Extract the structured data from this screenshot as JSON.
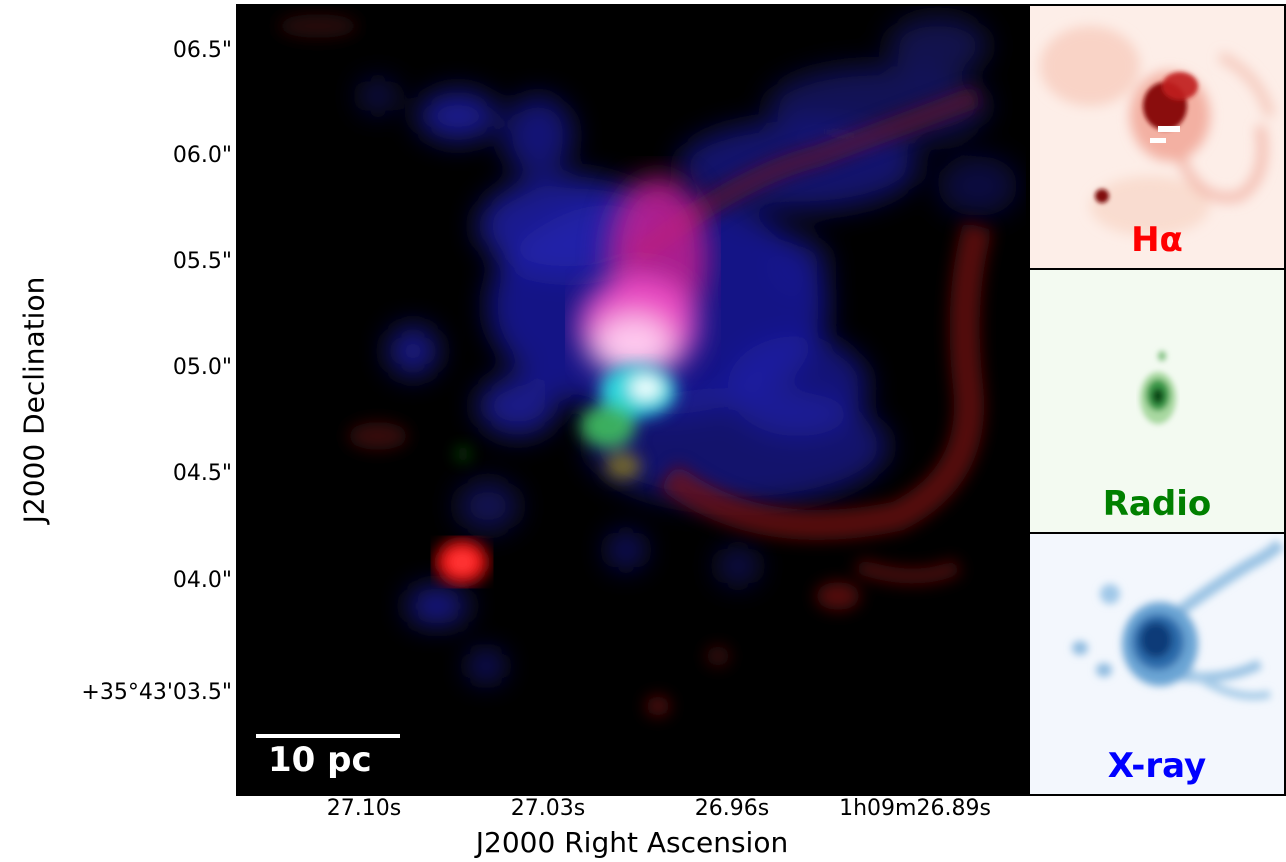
{
  "main_image": {
    "scale_bar_label": "10 pc",
    "y_axis_label": "J2000 Declination",
    "x_axis_label": "J2000 Right Ascension",
    "y_ticks": [
      "06.5\"",
      "06.0\"",
      "05.5\"",
      "05.0\"",
      "04.5\"",
      "04.0\"",
      "+35°43'03.5\""
    ],
    "x_ticks": [
      "27.10s",
      "27.03s",
      "26.96s",
      "1h09m26.89s"
    ],
    "channels": {
      "red": "H-alpha",
      "green": "Radio",
      "blue": "X-ray"
    }
  },
  "panels": [
    {
      "label": "Hα",
      "color": "#ff0000",
      "background": "#fdeee8"
    },
    {
      "label": "Radio",
      "color": "#008000",
      "background": "#f3faf1"
    },
    {
      "label": "X-ray",
      "color": "#0000ff",
      "background": "#f3f7fd"
    }
  ]
}
